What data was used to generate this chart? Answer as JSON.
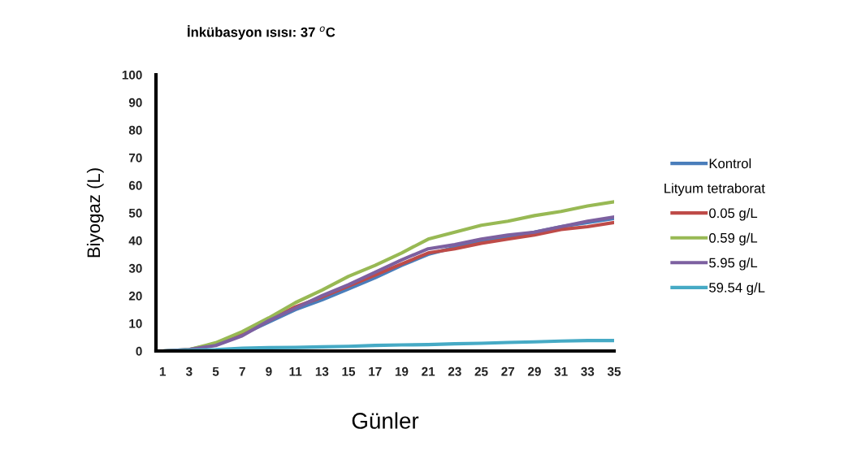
{
  "chart_data": {
    "type": "line",
    "title": "İnkübasyon ısısı: 37 $^{o}$C",
    "xlabel": "Günler",
    "ylabel": "Biyogaz (L)",
    "legend_title": "Lityum tetraborat",
    "x": [
      1,
      3,
      5,
      7,
      9,
      11,
      13,
      15,
      17,
      19,
      21,
      23,
      25,
      27,
      29,
      31,
      33,
      35
    ],
    "series": [
      {
        "name": "Kontrol",
        "color": "#4a7ebb",
        "values": [
          0,
          0.5,
          2.5,
          6,
          10.5,
          15,
          18.5,
          22.5,
          26.5,
          31,
          35,
          37.5,
          39.5,
          41,
          43,
          45,
          46.5,
          48
        ]
      },
      {
        "name": "0.05 g/L",
        "color": "#be4b48",
        "values": [
          null,
          null,
          2.5,
          6.5,
          11,
          16,
          19.5,
          23.5,
          27.5,
          31.5,
          35.5,
          37,
          39,
          40.5,
          42,
          44,
          45,
          46.5
        ]
      },
      {
        "name": "0.59 g/L",
        "color": "#98b954",
        "values": [
          0,
          0.5,
          3,
          7,
          12,
          17.5,
          22,
          27,
          31,
          35.5,
          40.5,
          43,
          45.5,
          47,
          49,
          50.5,
          52.5,
          54
        ]
      },
      {
        "name": "5.95 g/L",
        "color": "#7d60a0",
        "values": [
          0,
          0.5,
          2,
          5.5,
          11,
          15.5,
          20,
          24,
          28.5,
          33,
          37,
          38.5,
          40.5,
          42,
          43,
          45,
          47,
          48.5
        ]
      },
      {
        "name": "59.54 g/L",
        "color": "#46aac5",
        "values": [
          0,
          0.3,
          0.5,
          1,
          1.2,
          1.3,
          1.5,
          1.7,
          2,
          2.2,
          2.3,
          2.6,
          2.8,
          3.1,
          3.3,
          3.6,
          3.8,
          3.8
        ]
      }
    ],
    "xlim": [
      0.5,
      35
    ],
    "ylim": [
      0,
      100
    ],
    "xticks": [
      1,
      3,
      5,
      7,
      9,
      11,
      13,
      15,
      17,
      19,
      21,
      23,
      25,
      27,
      29,
      31,
      33,
      35
    ],
    "yticks": [
      0,
      10,
      20,
      30,
      40,
      50,
      60,
      70,
      80,
      90,
      100
    ],
    "grid": false,
    "legend": "right",
    "marker": "none",
    "line_style": "solid"
  }
}
